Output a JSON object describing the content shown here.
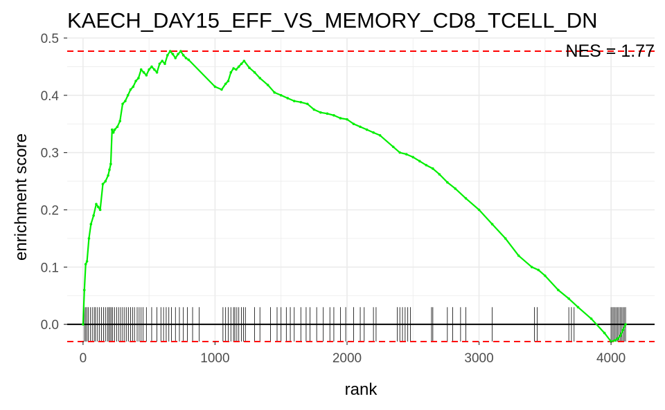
{
  "chart_data": {
    "type": "line",
    "title": "KAECH_DAY15_EFF_VS_MEMORY_CD8_TCELL_DN",
    "xlabel": "rank",
    "ylabel": "enrichment score",
    "xlim": [
      -120,
      4330
    ],
    "ylim": [
      -0.03,
      0.5
    ],
    "x_ticks": [
      0,
      1000,
      2000,
      3000,
      4000
    ],
    "x_tick_labels": [
      "0",
      "1000",
      "2000",
      "3000",
      "4000"
    ],
    "y_ticks": [
      0.0,
      0.1,
      0.2,
      0.3,
      0.4,
      0.5
    ],
    "y_tick_labels": [
      "0.0",
      "0.1",
      "0.2",
      "0.3",
      "0.4",
      "0.5"
    ],
    "grid": true,
    "annotation": "NES = 1.77",
    "max_es": 0.477,
    "min_es": -0.03,
    "colors": {
      "curve": "#00ee00",
      "threshold": "#ff0000",
      "zero_line": "#000000",
      "rug": "#000000",
      "grid": "#ebebeb"
    },
    "series": [
      {
        "x": [
          0,
          10,
          20,
          30,
          45,
          60,
          80,
          100,
          115,
          130,
          150,
          170,
          190,
          200,
          210,
          220,
          230,
          240,
          260,
          280,
          300,
          320,
          340,
          360,
          380,
          400,
          420,
          440,
          460,
          480,
          500,
          520,
          540,
          560,
          580,
          600,
          620,
          640,
          660,
          680,
          700,
          720,
          740,
          760,
          780,
          800,
          1000,
          1050,
          1080,
          1100,
          1120,
          1140,
          1160,
          1180,
          1200,
          1220,
          1260,
          1300,
          1340,
          1400,
          1450,
          1500,
          1550,
          1600,
          1650,
          1700,
          1750,
          1800,
          1850,
          1900,
          1950,
          2000,
          2050,
          2100,
          2150,
          2200,
          2250,
          2350,
          2400,
          2450,
          2500,
          2550,
          2600,
          2650,
          2700,
          2760,
          2820,
          2900,
          3000,
          3100,
          3200,
          3300,
          3400,
          3450,
          3500,
          3600,
          3680,
          3750,
          3850,
          3950,
          4000,
          4030,
          4050,
          4070,
          4090,
          4110
        ],
        "y": [
          0.0,
          0.06,
          0.105,
          0.11,
          0.15,
          0.175,
          0.19,
          0.21,
          0.205,
          0.2,
          0.245,
          0.25,
          0.26,
          0.27,
          0.28,
          0.34,
          0.335,
          0.34,
          0.345,
          0.355,
          0.385,
          0.39,
          0.4,
          0.41,
          0.415,
          0.425,
          0.43,
          0.445,
          0.44,
          0.435,
          0.445,
          0.45,
          0.445,
          0.44,
          0.455,
          0.46,
          0.455,
          0.47,
          0.477,
          0.472,
          0.465,
          0.472,
          0.477,
          0.47,
          0.465,
          0.462,
          0.415,
          0.41,
          0.42,
          0.425,
          0.44,
          0.447,
          0.445,
          0.45,
          0.455,
          0.46,
          0.448,
          0.44,
          0.43,
          0.418,
          0.405,
          0.4,
          0.395,
          0.39,
          0.388,
          0.385,
          0.375,
          0.37,
          0.368,
          0.365,
          0.36,
          0.358,
          0.35,
          0.345,
          0.34,
          0.335,
          0.33,
          0.31,
          0.3,
          0.297,
          0.292,
          0.285,
          0.278,
          0.272,
          0.262,
          0.248,
          0.237,
          0.22,
          0.2,
          0.175,
          0.15,
          0.12,
          0.1,
          0.095,
          0.085,
          0.06,
          0.045,
          0.03,
          0.01,
          -0.015,
          -0.03,
          -0.028,
          -0.025,
          -0.02,
          -0.01,
          0.0
        ]
      }
    ],
    "hit_ranks": [
      10,
      20,
      30,
      40,
      55,
      70,
      85,
      95,
      110,
      125,
      140,
      155,
      170,
      185,
      195,
      205,
      215,
      225,
      240,
      255,
      270,
      285,
      300,
      315,
      330,
      345,
      360,
      375,
      390,
      410,
      425,
      440,
      455,
      480,
      520,
      560,
      590,
      610,
      630,
      650,
      670,
      700,
      730,
      760,
      790,
      830,
      880,
      1060,
      1080,
      1100,
      1120,
      1140,
      1150,
      1165,
      1180,
      1200,
      1215,
      1230,
      1300,
      1340,
      1420,
      1470,
      1500,
      1540,
      1570,
      1600,
      1650,
      1690,
      1720,
      1770,
      1820,
      1870,
      1900,
      1950,
      1990,
      2050,
      2100,
      2130,
      2200,
      2220,
      2380,
      2400,
      2420,
      2440,
      2460,
      2480,
      2640,
      2650,
      2760,
      2800,
      2860,
      2900,
      3100,
      3420,
      3440,
      3680,
      3700,
      3720,
      4000,
      4010,
      4020,
      4030,
      4040,
      4050,
      4060,
      4070,
      4080,
      4090,
      4100,
      4110
    ]
  }
}
